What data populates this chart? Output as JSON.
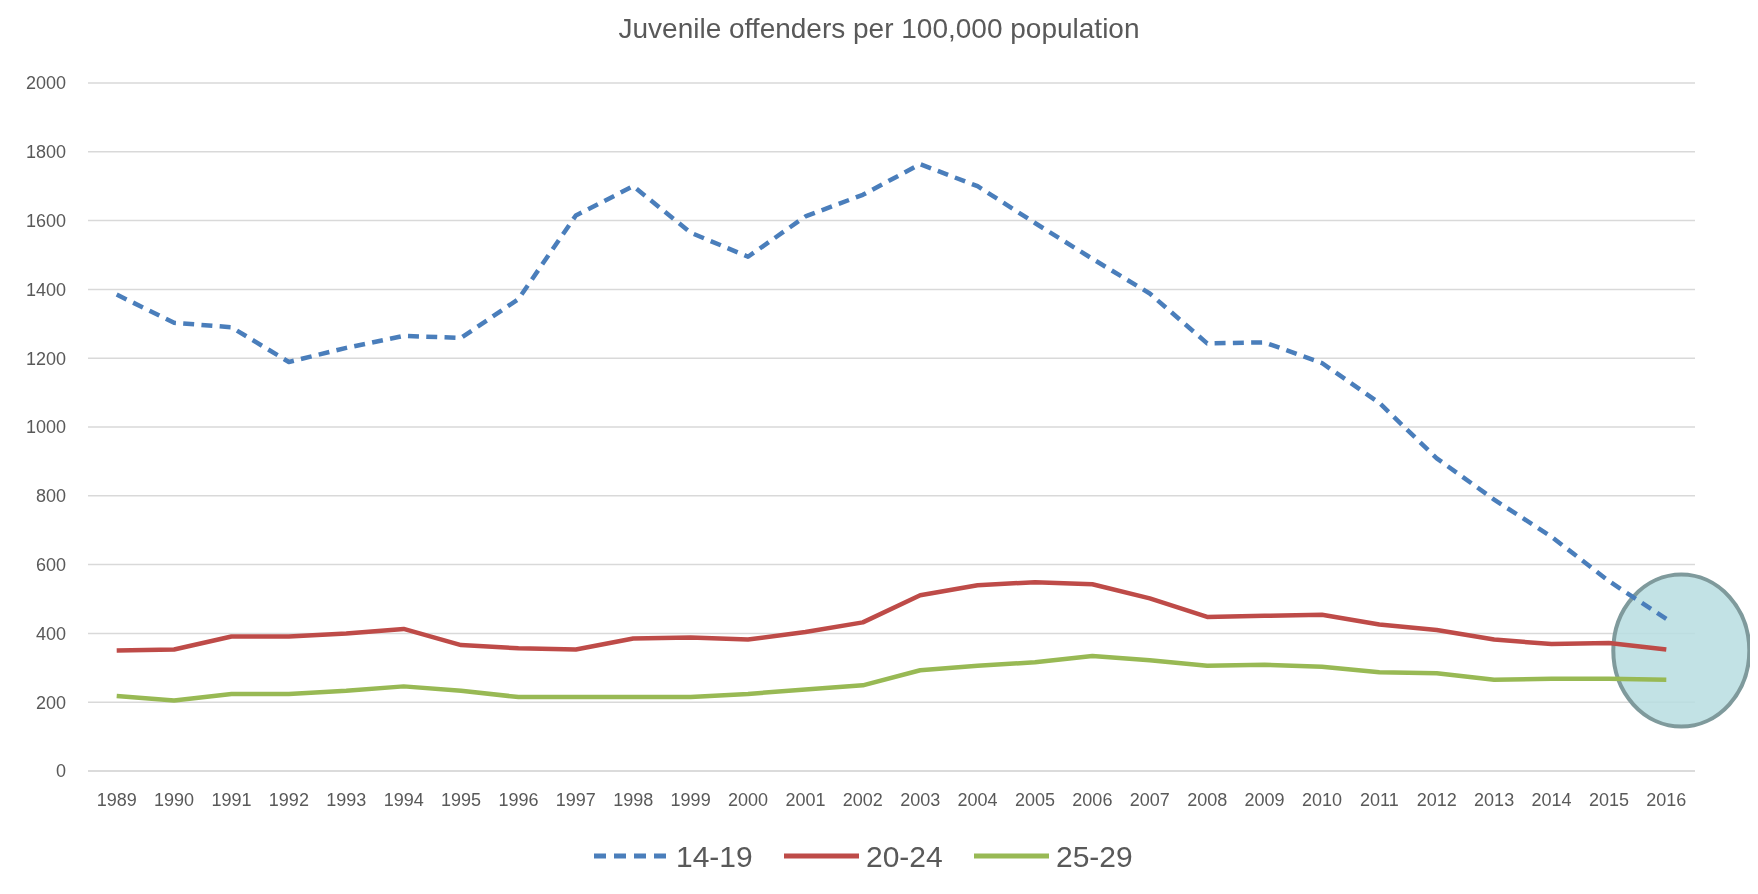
{
  "chart_data": {
    "type": "line",
    "title": "Juvenile offenders per 100,000 population",
    "categories": [
      "1989",
      "1990",
      "1991",
      "1992",
      "1993",
      "1994",
      "1995",
      "1996",
      "1997",
      "1998",
      "1999",
      "2000",
      "2001",
      "2002",
      "2003",
      "2004",
      "2005",
      "2006",
      "2007",
      "2008",
      "2009",
      "2010",
      "2011",
      "2012",
      "2013",
      "2014",
      "2015",
      "2016"
    ],
    "series": [
      {
        "name": "14-19",
        "color": "#4a7ebb",
        "line_style": "dashed",
        "values": [
          1385,
          1303,
          1290,
          1189,
          1230,
          1265,
          1259,
          1372,
          1615,
          1700,
          1565,
          1495,
          1612,
          1675,
          1764,
          1700,
          1593,
          1489,
          1388,
          1243,
          1246,
          1186,
          1070,
          909,
          789,
          681,
          552,
          442
        ]
      },
      {
        "name": "20-24",
        "color": "#be4b48",
        "line_style": "solid",
        "values": [
          350,
          353,
          391,
          391,
          400,
          413,
          366,
          357,
          353,
          385,
          388,
          382,
          404,
          432,
          511,
          540,
          549,
          543,
          502,
          448,
          451,
          454,
          426,
          410,
          382,
          369,
          372,
          353
        ]
      },
      {
        "name": "25-29",
        "color": "#98b954",
        "line_style": "solid",
        "values": [
          218,
          205,
          224,
          224,
          233,
          246,
          233,
          215,
          215,
          215,
          215,
          224,
          237,
          249,
          293,
          306,
          316,
          334,
          322,
          306,
          309,
          303,
          287,
          284,
          265,
          268,
          268,
          265
        ]
      }
    ],
    "ylim": [
      0,
      2000
    ],
    "yticks": [
      0,
      200,
      400,
      600,
      800,
      1000,
      1200,
      1400,
      1600,
      1800,
      2000
    ],
    "grid": "y",
    "legend": "bottom",
    "marker": "none"
  }
}
